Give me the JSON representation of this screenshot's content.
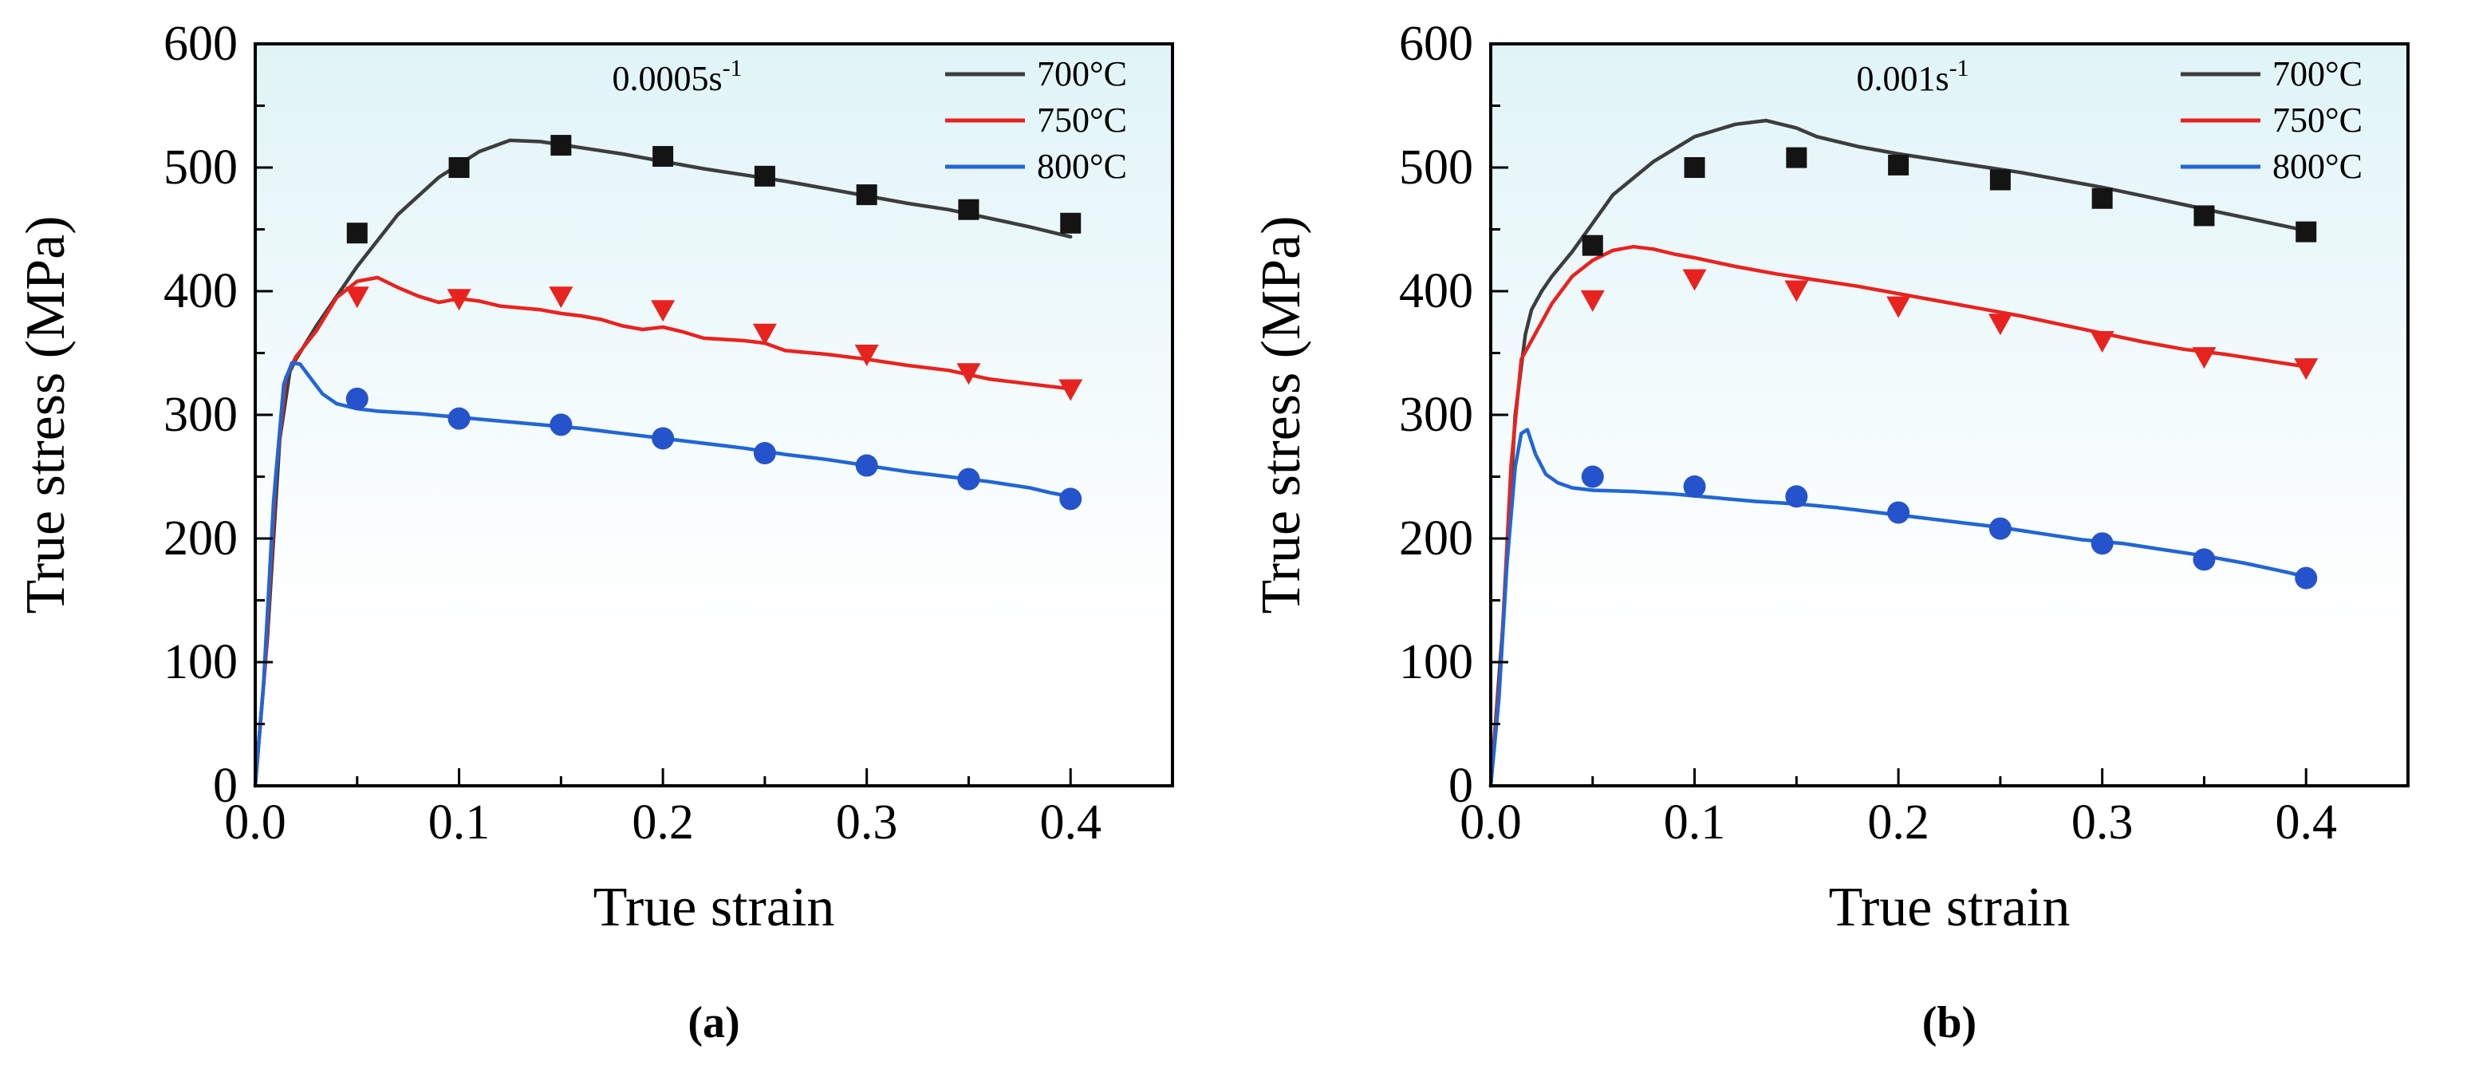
{
  "figure": {
    "background": "#ffffff",
    "axis_color": "#000000",
    "text_color": "#000000"
  },
  "chart_data": [
    {
      "type": "line",
      "panel": "a",
      "caption": "(a)",
      "annotation": {
        "text": "0.0005s",
        "superscript": "-1"
      },
      "xlabel": "True strain",
      "ylabel": "True stress (MPa)",
      "xlim": [
        0,
        0.45
      ],
      "ylim": [
        0,
        600
      ],
      "x_ticks": {
        "values": [
          0,
          0.1,
          0.2,
          0.3,
          0.4
        ],
        "labels": [
          "0.0",
          "0.1",
          "0.2",
          "0.3",
          "0.4"
        ],
        "minor": [
          0.05,
          0.15,
          0.25,
          0.35,
          0.45
        ]
      },
      "y_ticks": {
        "values": [
          0,
          100,
          200,
          300,
          400,
          500,
          600
        ],
        "labels": [
          "0",
          "100",
          "200",
          "300",
          "400",
          "500",
          "600"
        ],
        "minor": [
          50,
          150,
          250,
          350,
          450,
          550
        ]
      },
      "plot_bg": {
        "top": "#e0f4f8",
        "bottom": "#ffffff"
      },
      "axis_color": "#000000",
      "legend": {
        "position": "top-right",
        "entries": [
          "700°C",
          "750°C",
          "800°C"
        ]
      },
      "series": [
        {
          "name": "700°C",
          "color": "#3d3d3d",
          "marker": "square",
          "marker_color": "#141414",
          "line": [
            [
              0,
              0
            ],
            [
              0.006,
              120
            ],
            [
              0.012,
              280
            ],
            [
              0.017,
              335
            ],
            [
              0.02,
              345
            ],
            [
              0.03,
              372
            ],
            [
              0.05,
              420
            ],
            [
              0.07,
              462
            ],
            [
              0.09,
              492
            ],
            [
              0.11,
              513
            ],
            [
              0.125,
              522
            ],
            [
              0.14,
              521
            ],
            [
              0.16,
              516
            ],
            [
              0.18,
              511
            ],
            [
              0.2,
              505
            ],
            [
              0.22,
              499
            ],
            [
              0.24,
              494
            ],
            [
              0.26,
              489
            ],
            [
              0.28,
              483
            ],
            [
              0.3,
              477
            ],
            [
              0.32,
              471
            ],
            [
              0.34,
              466
            ],
            [
              0.36,
              459
            ],
            [
              0.38,
              452
            ],
            [
              0.4,
              444
            ]
          ],
          "points": [
            [
              0.05,
              447
            ],
            [
              0.1,
              500
            ],
            [
              0.15,
              518
            ],
            [
              0.2,
              509
            ],
            [
              0.25,
              493
            ],
            [
              0.3,
              478
            ],
            [
              0.35,
              466
            ],
            [
              0.4,
              455
            ]
          ]
        },
        {
          "name": "750°C",
          "color": "#e8231f",
          "marker": "triangle-down",
          "marker_color": "#e8231f",
          "line": [
            [
              0,
              0
            ],
            [
              0.005,
              100
            ],
            [
              0.01,
              250
            ],
            [
              0.015,
              330
            ],
            [
              0.02,
              347
            ],
            [
              0.03,
              368
            ],
            [
              0.04,
              395
            ],
            [
              0.05,
              408
            ],
            [
              0.06,
              411
            ],
            [
              0.07,
              403
            ],
            [
              0.08,
              396
            ],
            [
              0.09,
              391
            ],
            [
              0.1,
              394
            ],
            [
              0.11,
              392
            ],
            [
              0.12,
              388
            ],
            [
              0.14,
              385
            ],
            [
              0.15,
              382
            ],
            [
              0.16,
              380
            ],
            [
              0.17,
              377
            ],
            [
              0.18,
              372
            ],
            [
              0.19,
              369
            ],
            [
              0.2,
              371
            ],
            [
              0.21,
              367
            ],
            [
              0.22,
              362
            ],
            [
              0.24,
              360
            ],
            [
              0.25,
              358
            ],
            [
              0.26,
              352
            ],
            [
              0.28,
              349
            ],
            [
              0.3,
              345
            ],
            [
              0.32,
              340
            ],
            [
              0.34,
              336
            ],
            [
              0.36,
              329
            ],
            [
              0.38,
              325
            ],
            [
              0.4,
              321
            ]
          ],
          "points": [
            [
              0.05,
              396
            ],
            [
              0.1,
              394
            ],
            [
              0.15,
              396
            ],
            [
              0.2,
              385
            ],
            [
              0.25,
              366
            ],
            [
              0.3,
              349
            ],
            [
              0.35,
              334
            ],
            [
              0.4,
              321
            ]
          ]
        },
        {
          "name": "800°C",
          "color": "#2166d4",
          "marker": "circle",
          "marker_color": "#2553cb",
          "line": [
            [
              0,
              0
            ],
            [
              0.004,
              80
            ],
            [
              0.009,
              230
            ],
            [
              0.014,
              325
            ],
            [
              0.018,
              342
            ],
            [
              0.022,
              341
            ],
            [
              0.027,
              330
            ],
            [
              0.033,
              317
            ],
            [
              0.04,
              309
            ],
            [
              0.05,
              305
            ],
            [
              0.06,
              303
            ],
            [
              0.08,
              301
            ],
            [
              0.1,
              298
            ],
            [
              0.12,
              295
            ],
            [
              0.14,
              292
            ],
            [
              0.16,
              289
            ],
            [
              0.18,
              285
            ],
            [
              0.2,
              281
            ],
            [
              0.22,
              277
            ],
            [
              0.24,
              273
            ],
            [
              0.26,
              268
            ],
            [
              0.28,
              264
            ],
            [
              0.3,
              259
            ],
            [
              0.32,
              254
            ],
            [
              0.34,
              250
            ],
            [
              0.36,
              246
            ],
            [
              0.38,
              241
            ],
            [
              0.39,
              237
            ],
            [
              0.4,
              234
            ]
          ],
          "points": [
            [
              0.05,
              313
            ],
            [
              0.1,
              297
            ],
            [
              0.15,
              292
            ],
            [
              0.2,
              281
            ],
            [
              0.25,
              269
            ],
            [
              0.3,
              259
            ],
            [
              0.35,
              248
            ],
            [
              0.4,
              232
            ]
          ]
        }
      ]
    },
    {
      "type": "line",
      "panel": "b",
      "caption": "(b)",
      "annotation": {
        "text": "0.001s",
        "superscript": "-1"
      },
      "xlabel": "True strain",
      "ylabel": "True stress (MPa)",
      "xlim": [
        0,
        0.45
      ],
      "ylim": [
        0,
        600
      ],
      "x_ticks": {
        "values": [
          0,
          0.1,
          0.2,
          0.3,
          0.4
        ],
        "labels": [
          "0.0",
          "0.1",
          "0.2",
          "0.3",
          "0.4"
        ],
        "minor": [
          0.05,
          0.15,
          0.25,
          0.35,
          0.45
        ]
      },
      "y_ticks": {
        "values": [
          0,
          100,
          200,
          300,
          400,
          500,
          600
        ],
        "labels": [
          "0",
          "100",
          "200",
          "300",
          "400",
          "500",
          "600"
        ],
        "minor": [
          50,
          150,
          250,
          350,
          450,
          550
        ]
      },
      "plot_bg": {
        "top": "#e0f4f8",
        "bottom": "#ffffff"
      },
      "axis_color": "#000000",
      "legend": {
        "position": "top-right",
        "entries": [
          "700°C",
          "750°C",
          "800°C"
        ]
      },
      "series": [
        {
          "name": "700°C",
          "color": "#3d3d3d",
          "marker": "square",
          "marker_color": "#141414",
          "line": [
            [
              0,
              0
            ],
            [
              0.006,
              130
            ],
            [
              0.012,
              300
            ],
            [
              0.017,
              365
            ],
            [
              0.02,
              385
            ],
            [
              0.025,
              400
            ],
            [
              0.03,
              412
            ],
            [
              0.04,
              432
            ],
            [
              0.05,
              455
            ],
            [
              0.06,
              478
            ],
            [
              0.08,
              505
            ],
            [
              0.1,
              525
            ],
            [
              0.12,
              535
            ],
            [
              0.135,
              538
            ],
            [
              0.15,
              532
            ],
            [
              0.16,
              525
            ],
            [
              0.18,
              517
            ],
            [
              0.2,
              511
            ],
            [
              0.22,
              506
            ],
            [
              0.24,
              501
            ],
            [
              0.26,
              496
            ],
            [
              0.28,
              490
            ],
            [
              0.3,
              484
            ],
            [
              0.32,
              477
            ],
            [
              0.34,
              470
            ],
            [
              0.36,
              463
            ],
            [
              0.38,
              456
            ],
            [
              0.4,
              449
            ]
          ],
          "points": [
            [
              0.05,
              437
            ],
            [
              0.1,
              500
            ],
            [
              0.15,
              508
            ],
            [
              0.2,
              502
            ],
            [
              0.25,
              490
            ],
            [
              0.3,
              475
            ],
            [
              0.35,
              461
            ],
            [
              0.4,
              448
            ]
          ]
        },
        {
          "name": "750°C",
          "color": "#e8231f",
          "marker": "triangle-down",
          "marker_color": "#e8231f",
          "line": [
            [
              0,
              0
            ],
            [
              0.005,
              100
            ],
            [
              0.01,
              260
            ],
            [
              0.015,
              345
            ],
            [
              0.02,
              360
            ],
            [
              0.03,
              390
            ],
            [
              0.04,
              412
            ],
            [
              0.05,
              425
            ],
            [
              0.06,
              433
            ],
            [
              0.07,
              436
            ],
            [
              0.08,
              434
            ],
            [
              0.09,
              430
            ],
            [
              0.1,
              427
            ],
            [
              0.12,
              420
            ],
            [
              0.14,
              414
            ],
            [
              0.16,
              409
            ],
            [
              0.18,
              404
            ],
            [
              0.2,
              398
            ],
            [
              0.22,
              392
            ],
            [
              0.24,
              386
            ],
            [
              0.26,
              380
            ],
            [
              0.28,
              373
            ],
            [
              0.3,
              366
            ],
            [
              0.32,
              359
            ],
            [
              0.34,
              353
            ],
            [
              0.36,
              349
            ],
            [
              0.38,
              344
            ],
            [
              0.4,
              339
            ]
          ],
          "points": [
            [
              0.05,
              393
            ],
            [
              0.1,
              410
            ],
            [
              0.15,
              401
            ],
            [
              0.2,
              388
            ],
            [
              0.25,
              374
            ],
            [
              0.3,
              360
            ],
            [
              0.35,
              347
            ],
            [
              0.4,
              338
            ]
          ]
        },
        {
          "name": "800°C",
          "color": "#2166d4",
          "marker": "circle",
          "marker_color": "#2553cb",
          "line": [
            [
              0,
              0
            ],
            [
              0.004,
              70
            ],
            [
              0.008,
              180
            ],
            [
              0.012,
              258
            ],
            [
              0.015,
              285
            ],
            [
              0.018,
              288
            ],
            [
              0.022,
              268
            ],
            [
              0.027,
              252
            ],
            [
              0.033,
              245
            ],
            [
              0.04,
              241
            ],
            [
              0.05,
              239
            ],
            [
              0.07,
              238
            ],
            [
              0.09,
              236
            ],
            [
              0.11,
              233
            ],
            [
              0.13,
              230
            ],
            [
              0.15,
              228
            ],
            [
              0.17,
              225
            ],
            [
              0.19,
              221
            ],
            [
              0.21,
              217
            ],
            [
              0.23,
              213
            ],
            [
              0.25,
              209
            ],
            [
              0.27,
              204
            ],
            [
              0.29,
              199
            ],
            [
              0.31,
              196
            ],
            [
              0.33,
              191
            ],
            [
              0.35,
              186
            ],
            [
              0.37,
              180
            ],
            [
              0.39,
              173
            ],
            [
              0.4,
              169
            ]
          ],
          "points": [
            [
              0.05,
              250
            ],
            [
              0.1,
              242
            ],
            [
              0.15,
              234
            ],
            [
              0.2,
              221
            ],
            [
              0.25,
              208
            ],
            [
              0.3,
              196
            ],
            [
              0.35,
              183
            ],
            [
              0.4,
              168
            ]
          ]
        }
      ]
    }
  ]
}
